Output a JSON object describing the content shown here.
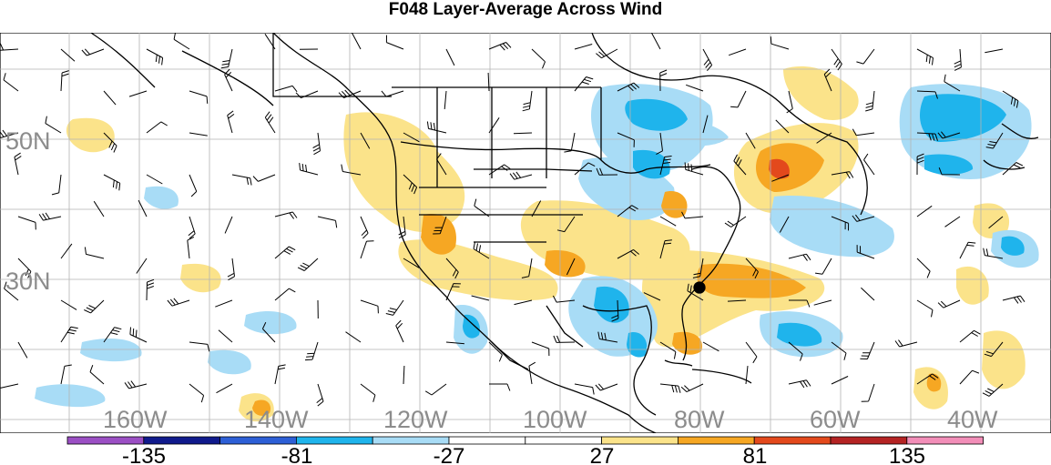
{
  "title": "F048 Layer-Average Across Wind",
  "map": {
    "lat_labels": [
      "50N",
      "30N"
    ],
    "lon_labels": [
      "160W",
      "140W",
      "120W",
      "100W",
      "80W",
      "60W",
      "40W"
    ],
    "label_color": "#8c8c8c",
    "grid_color": "#b3b3b3",
    "coast_color": "#000000"
  },
  "colorbar": {
    "labels": [
      "-135",
      "-81",
      "-27",
      "27",
      "81",
      "135"
    ],
    "colors": [
      "#9b4fc4",
      "#101a8c",
      "#2d5fd6",
      "#1fb4ec",
      "#a8dcf6",
      "#ffffff",
      "#ffffff",
      "#fbe38a",
      "#f6a723",
      "#e3491c",
      "#b42323",
      "#f28eb8"
    ]
  },
  "palette": {
    "blue_light": "#a8dcf6",
    "blue_mid": "#1fb4ec",
    "orange_light": "#fbe38a",
    "orange_mid": "#f6a723",
    "red": "#e3491c"
  }
}
